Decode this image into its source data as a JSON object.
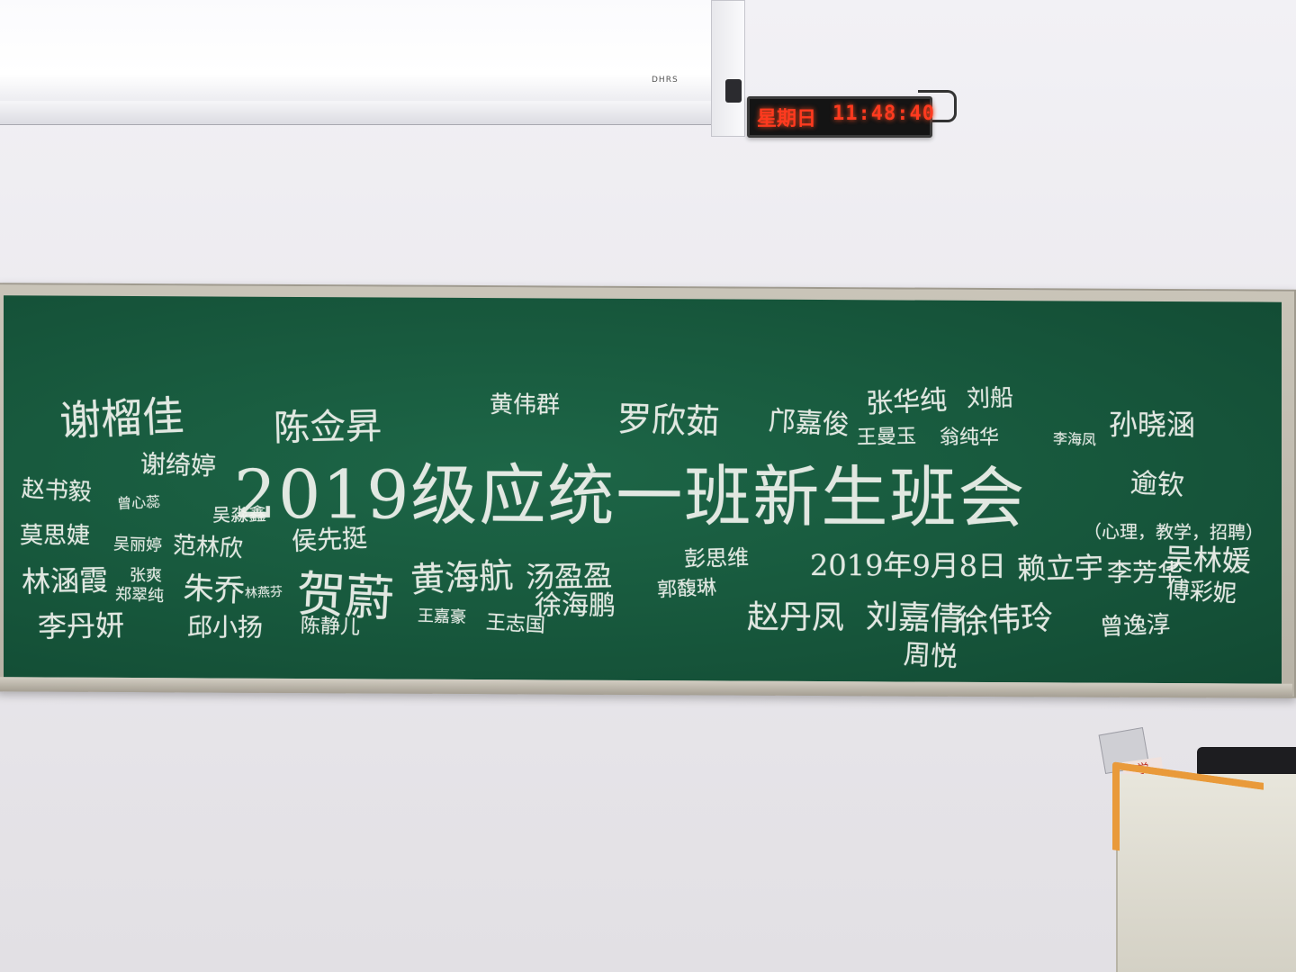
{
  "clock": {
    "day": "星期日",
    "time": "11:48:40"
  },
  "screen": {
    "brand": "DHRS"
  },
  "board": {
    "title": "2019级应统一班新生班会",
    "date": "2019年9月8日",
    "names": [
      "谢榴佳",
      "陈佥昇",
      "黄伟群",
      "罗欣茹",
      "邝嘉俊",
      "张华纯",
      "刘船",
      "孙晓涵",
      "谢绮婷",
      "赵书毅",
      "曾心蕊",
      "吴淼鑫",
      "莫思婕",
      "吴丽婷",
      "范林欣",
      "侯先挺",
      "林涵霞",
      "张爽",
      "郑翠纯",
      "朱乔",
      "林燕芬",
      "李丹妍",
      "邱小扬",
      "陈静儿",
      "贺蔚",
      "黄海航",
      "汤盈盈",
      "徐海鹏",
      "王嘉豪",
      "王志国",
      "郭馥琳",
      "彭思维",
      "赵丹凤",
      "刘嘉倩",
      "周悦",
      "徐伟玲",
      "赖立宇",
      "李芳华",
      "吴林媛",
      "傅彩妮",
      "曾逸淳",
      "王曼玉",
      "翁纯华",
      "李海凤",
      "逾钦"
    ],
    "note": "（心理，教学，招聘）"
  },
  "podium": {
    "tag": "学"
  }
}
